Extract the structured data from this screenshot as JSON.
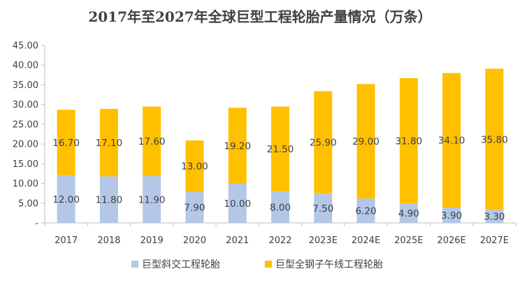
{
  "chart_data": {
    "type": "bar",
    "stacked": true,
    "title": "2017年至2027年全球巨型工程轮胎产量情况（万条）",
    "categories": [
      "2017",
      "2018",
      "2019",
      "2020",
      "2021",
      "2022",
      "2023E",
      "2024E",
      "2025E",
      "2026E",
      "2027E"
    ],
    "series": [
      {
        "name": "巨型斜交工程轮胎",
        "color": "#b4c7e7",
        "values": [
          12.0,
          11.8,
          11.9,
          7.9,
          10.0,
          8.0,
          7.5,
          6.2,
          4.9,
          3.9,
          3.3
        ],
        "labels": [
          "12.00",
          "11.80",
          "11.90",
          "7.90",
          "10.00",
          "8.00",
          "7.50",
          "6.20",
          "4.90",
          "3.90",
          "3.30"
        ]
      },
      {
        "name": "巨型全钢子午线工程轮胎",
        "color": "#ffc000",
        "values": [
          16.7,
          17.1,
          17.6,
          13.0,
          19.2,
          21.5,
          25.9,
          29.0,
          31.8,
          34.1,
          35.8
        ],
        "labels": [
          "16.70",
          "17.10",
          "17.60",
          "13.00",
          "19.20",
          "21.50",
          "25.90",
          "29.00",
          "31.80",
          "34.10",
          "35.80"
        ]
      }
    ],
    "y_ticks": [
      {
        "value": 0,
        "label": "-"
      },
      {
        "value": 5,
        "label": "5.00"
      },
      {
        "value": 10,
        "label": "10.00"
      },
      {
        "value": 15,
        "label": "15.00"
      },
      {
        "value": 20,
        "label": "20.00"
      },
      {
        "value": 25,
        "label": "25.00"
      },
      {
        "value": 30,
        "label": "30.00"
      },
      {
        "value": 35,
        "label": "35.00"
      },
      {
        "value": 40,
        "label": "40.00"
      },
      {
        "value": 45,
        "label": "45.00"
      }
    ],
    "ylim": [
      0,
      45
    ],
    "grid": false,
    "legend_position": "bottom"
  }
}
